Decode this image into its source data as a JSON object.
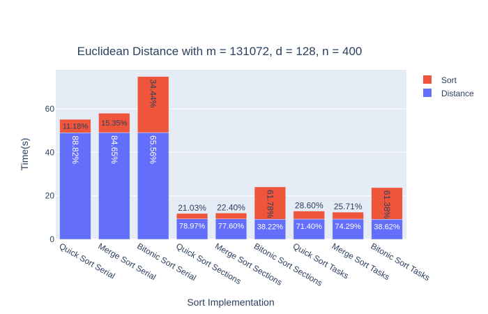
{
  "chart_data": {
    "type": "bar",
    "stacked": true,
    "title": "Euclidean Distance with m = 131072, d = 128, n = 400",
    "xlabel": "Sort Implementation",
    "ylabel": "Time(s)",
    "ylim": [
      0,
      78
    ],
    "yticks": [
      0,
      20,
      40,
      60
    ],
    "grid": true,
    "legend_position": "top-right",
    "categories": [
      "Quick Sort Serial",
      "Merge Sort Serial",
      "Bitonic Sort Serial",
      "Quick Sort Sections",
      "Merge Sort Sections",
      "Bitonic Sort Sections",
      "Quick Sort Tasks",
      "Merge Sort Tasks",
      "Bitonic Sort Tasks"
    ],
    "series": [
      {
        "name": "Distance",
        "color": "#636efa",
        "values": [
          49.0,
          49.1,
          49.1,
          9.4,
          9.4,
          9.2,
          9.3,
          9.3,
          9.2
        ],
        "labels": [
          "88.82%",
          "84.65%",
          "65.56%",
          "78.97%",
          "77.60%",
          "38.22%",
          "71.40%",
          "74.29%",
          "38.62%"
        ]
      },
      {
        "name": "Sort",
        "color": "#ef553b",
        "values": [
          6.2,
          8.9,
          25.8,
          2.5,
          2.7,
          14.9,
          3.7,
          3.2,
          14.6
        ],
        "labels": [
          "11.18%",
          "15.35%",
          "34.44%",
          "21.03%",
          "22.40%",
          "61.78%",
          "28.60%",
          "25.71%",
          "61.38%"
        ]
      }
    ]
  },
  "legend": {
    "items": [
      {
        "name": "Sort",
        "color": "#ef553b"
      },
      {
        "name": "Distance",
        "color": "#636efa"
      }
    ]
  }
}
